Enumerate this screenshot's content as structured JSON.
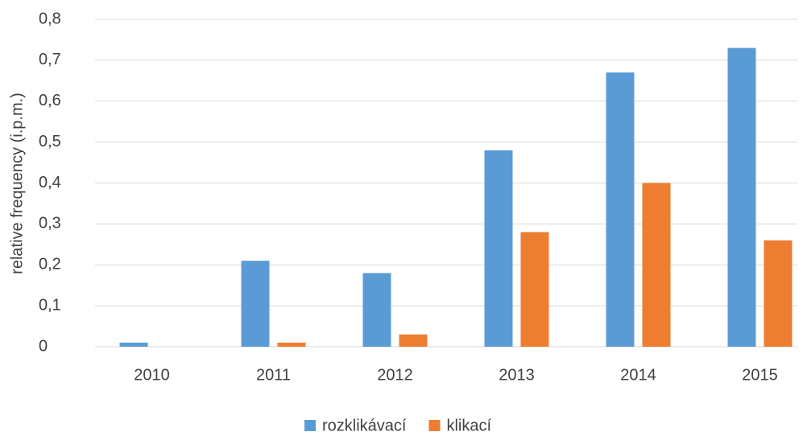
{
  "chart_data": {
    "type": "bar",
    "y_label": "relative frequency (i.p.m.)",
    "categories": [
      "2010",
      "2011",
      "2012",
      "2013",
      "2014",
      "2015"
    ],
    "series": [
      {
        "name": "rozklikávací",
        "color": "#5b9bd5",
        "values": [
          0.01,
          0.21,
          0.18,
          0.48,
          0.67,
          0.73
        ]
      },
      {
        "name": "klikací",
        "color": "#ed7d31",
        "values": [
          0,
          0.01,
          0.03,
          0.28,
          0.4,
          0.26
        ]
      }
    ],
    "ylim": [
      0,
      0.8
    ],
    "yticks": [
      0,
      {
        "value": 0.1,
        "label": "0,1"
      },
      {
        "value": 0.2,
        "label": "0,2"
      },
      {
        "value": 0.3,
        "label": "0,3"
      },
      {
        "value": 0.4,
        "label": "0,4"
      },
      {
        "value": 0.5,
        "label": "0,5"
      },
      {
        "value": 0.6,
        "label": "0,6"
      },
      {
        "value": 0.7,
        "label": "0,7"
      },
      {
        "value": 0.8,
        "label": "0,8"
      }
    ],
    "grid": true,
    "legend": "bottom"
  }
}
